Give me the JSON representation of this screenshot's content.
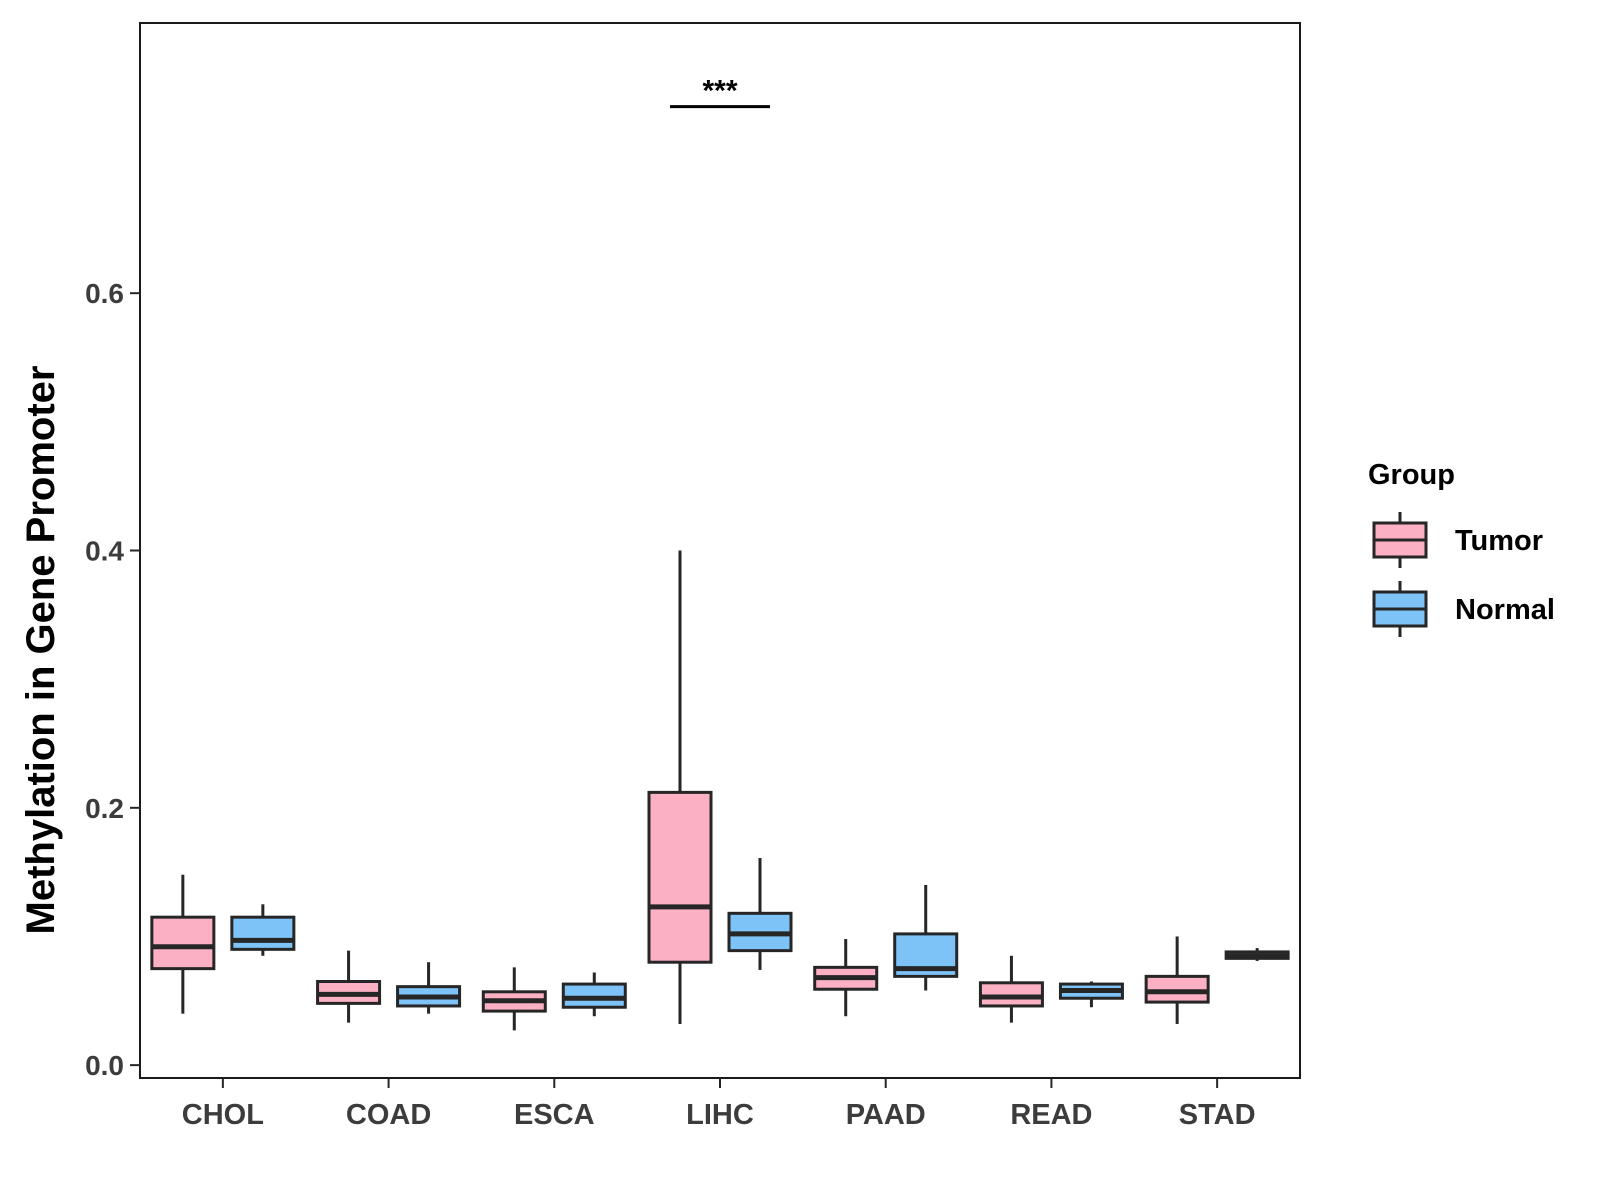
{
  "chart_data": {
    "type": "boxplot",
    "title": "",
    "xlabel": "",
    "ylabel": "Methylation in Gene Promoter",
    "ylim": [
      -0.01,
      0.81
    ],
    "y_ticks": [
      0.0,
      0.2,
      0.4,
      0.6
    ],
    "y_tick_labels": [
      "0.0",
      "0.2",
      "0.4",
      "0.6"
    ],
    "grid": false,
    "categories": [
      "CHOL",
      "COAD",
      "ESCA",
      "LIHC",
      "PAAD",
      "READ",
      "STAD"
    ],
    "legend": {
      "title": "Group",
      "placement": "right",
      "entries": [
        "Tumor",
        "Normal"
      ]
    },
    "series": [
      {
        "name": "Tumor",
        "color": "#FBB1C3",
        "boxes": [
          {
            "min": 0.04,
            "q1": 0.075,
            "median": 0.092,
            "q3": 0.115,
            "max": 0.148
          },
          {
            "min": 0.033,
            "q1": 0.048,
            "median": 0.055,
            "q3": 0.065,
            "max": 0.089
          },
          {
            "min": 0.027,
            "q1": 0.042,
            "median": 0.05,
            "q3": 0.057,
            "max": 0.076
          },
          {
            "min": 0.032,
            "q1": 0.08,
            "median": 0.123,
            "q3": 0.212,
            "max": 0.4
          },
          {
            "min": 0.038,
            "q1": 0.059,
            "median": 0.068,
            "q3": 0.076,
            "max": 0.098
          },
          {
            "min": 0.033,
            "q1": 0.046,
            "median": 0.053,
            "q3": 0.064,
            "max": 0.085
          },
          {
            "min": 0.032,
            "q1": 0.049,
            "median": 0.057,
            "q3": 0.069,
            "max": 0.1
          }
        ]
      },
      {
        "name": "Normal",
        "color": "#7EC3F8",
        "boxes": [
          {
            "min": 0.085,
            "q1": 0.09,
            "median": 0.097,
            "q3": 0.115,
            "max": 0.125
          },
          {
            "min": 0.04,
            "q1": 0.046,
            "median": 0.053,
            "q3": 0.061,
            "max": 0.08
          },
          {
            "min": 0.038,
            "q1": 0.045,
            "median": 0.052,
            "q3": 0.063,
            "max": 0.072
          },
          {
            "min": 0.074,
            "q1": 0.089,
            "median": 0.102,
            "q3": 0.118,
            "max": 0.161
          },
          {
            "min": 0.058,
            "q1": 0.069,
            "median": 0.075,
            "q3": 0.102,
            "max": 0.14
          },
          {
            "min": 0.045,
            "q1": 0.052,
            "median": 0.058,
            "q3": 0.063,
            "max": 0.065
          },
          {
            "min": 0.081,
            "q1": 0.083,
            "median": 0.085,
            "q3": 0.088,
            "max": 0.091
          }
        ]
      }
    ],
    "annotations": [
      {
        "category": "LIHC",
        "text": "***",
        "y": 0.745
      }
    ]
  }
}
